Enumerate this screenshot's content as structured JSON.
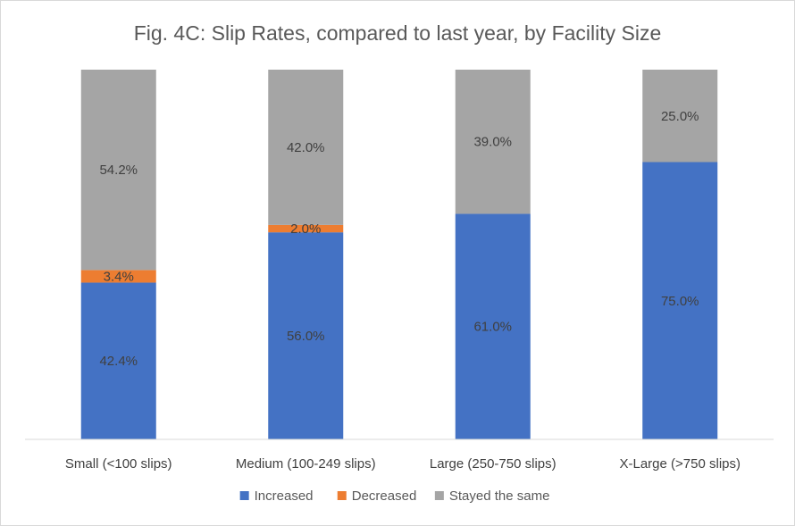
{
  "chart_data": {
    "type": "bar",
    "stacked": true,
    "percent_stacked": true,
    "title": "Fig. 4C: Slip Rates, compared to last year, by Facility Size",
    "categories": [
      "Small (<100 slips)",
      "Medium (100-249 slips)",
      "Large (250-750 slips)",
      "X-Large (>750 slips)"
    ],
    "series": [
      {
        "name": "Increased",
        "color": "#4472C4",
        "values": [
          42.4,
          56.0,
          61.0,
          75.0
        ],
        "labels": [
          "42.4%",
          "56.0%",
          "61.0%",
          "75.0%"
        ]
      },
      {
        "name": "Decreased",
        "color": "#ED7D31",
        "values": [
          3.4,
          2.0,
          0,
          0
        ],
        "labels": [
          "3.4%",
          "2.0%",
          "",
          ""
        ]
      },
      {
        "name": "Stayed the same",
        "color": "#A5A5A5",
        "values": [
          54.2,
          42.0,
          39.0,
          25.0
        ],
        "labels": [
          "54.2%",
          "42.0%",
          "39.0%",
          "25.0%"
        ]
      }
    ],
    "ylim": [
      0,
      100
    ],
    "grid": false,
    "legend_position": "bottom"
  }
}
